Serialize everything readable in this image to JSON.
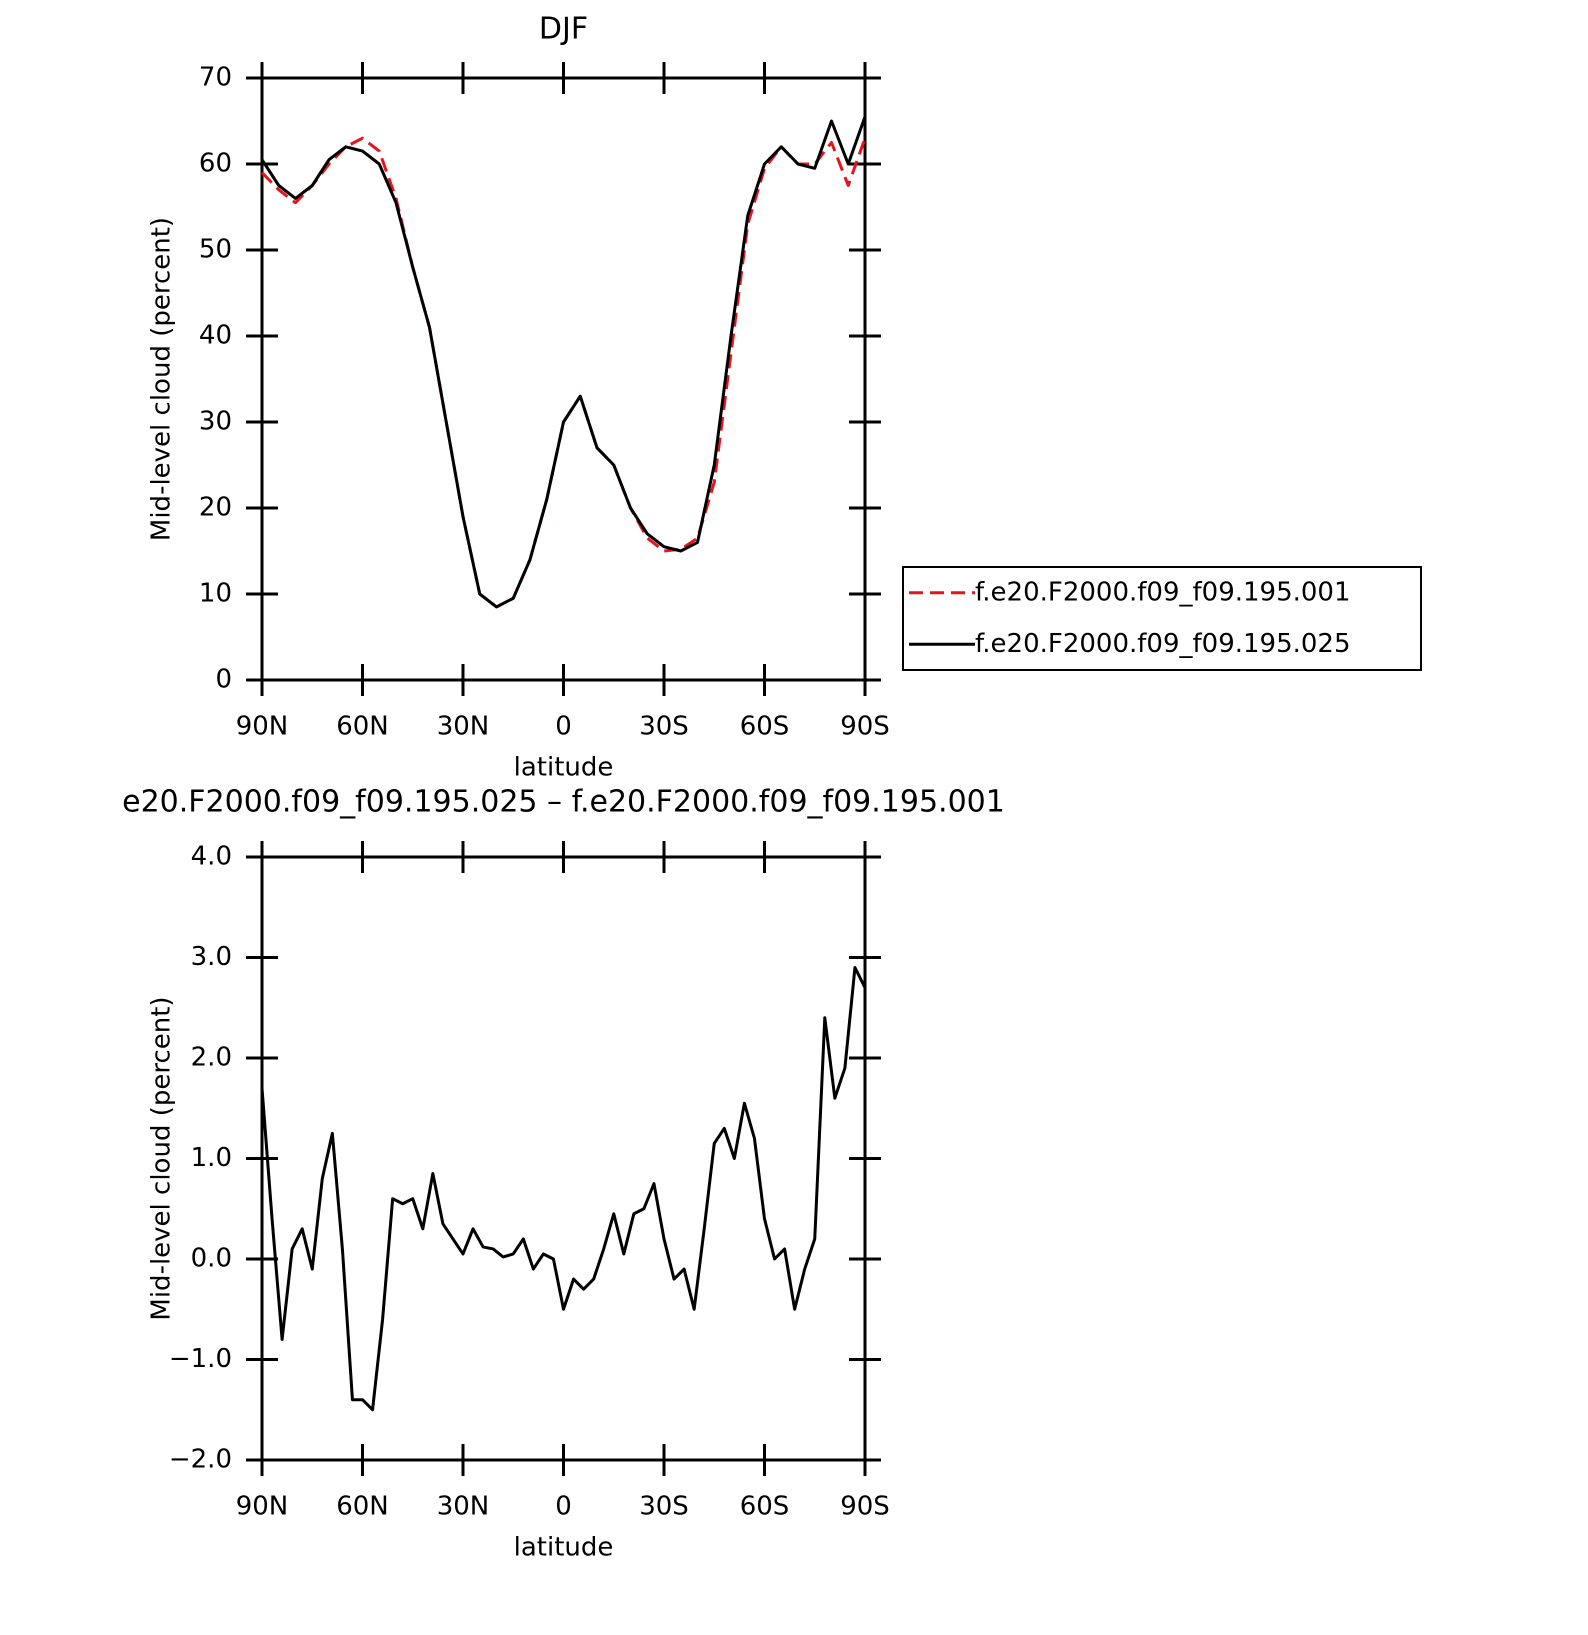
{
  "chart_data": [
    {
      "type": "line",
      "title": "DJF",
      "xlabel": "latitude",
      "ylabel": "Mid-level cloud (percent)",
      "x": [
        90,
        85,
        80,
        75,
        70,
        65,
        60,
        55,
        50,
        45,
        40,
        35,
        30,
        25,
        20,
        15,
        10,
        5,
        0,
        -5,
        -10,
        -15,
        -20,
        -25,
        -30,
        -35,
        -40,
        -45,
        -50,
        -55,
        -60,
        -65,
        -70,
        -75,
        -80,
        -85,
        -90
      ],
      "series": [
        {
          "name": "f.e20.F2000.f09_f09.195.001",
          "color": "#e8141b",
          "line_style": "dashed",
          "values": [
            59,
            57,
            55.5,
            57.5,
            60,
            62,
            63,
            61.5,
            56,
            48,
            41,
            30,
            19,
            10,
            8.5,
            9.5,
            14,
            21,
            30,
            33,
            27,
            25,
            20,
            16.5,
            15,
            15.2,
            16.5,
            23,
            38,
            53,
            59.5,
            62,
            60,
            60,
            62.5,
            57.5,
            63
          ]
        },
        {
          "name": "f.e20.F2000.f09_f09.195.025",
          "color": "#000000",
          "line_style": "solid",
          "values": [
            60.5,
            57.5,
            56,
            57.5,
            60.5,
            62,
            61.5,
            60,
            55.5,
            48,
            41,
            30,
            19,
            10,
            8.5,
            9.5,
            14,
            21,
            30,
            33,
            27,
            25,
            20,
            17,
            15.5,
            15,
            16,
            25,
            40,
            54,
            60,
            62,
            60,
            59.5,
            65,
            60,
            65.5
          ]
        }
      ],
      "xlim": [
        90,
        -90
      ],
      "xticks": [
        {
          "value": 90,
          "label": "90N"
        },
        {
          "value": 60,
          "label": "60N"
        },
        {
          "value": 30,
          "label": "30N"
        },
        0,
        {
          "value": -30,
          "label": "30S"
        },
        {
          "value": -60,
          "label": "60S"
        },
        {
          "value": -90,
          "label": "90S"
        }
      ],
      "ylim": [
        0,
        70
      ],
      "yticks": [
        0,
        10,
        20,
        30,
        40,
        50,
        60,
        70
      ],
      "legend": "right"
    },
    {
      "type": "line",
      "title": "e20.F2000.f09_f09.195.025 – f.e20.F2000.f09_f09.195.001",
      "xlabel": "latitude",
      "ylabel": "Mid-level cloud (percent)",
      "x": [
        90,
        87,
        84,
        81,
        78,
        75,
        72,
        69,
        66,
        63,
        60,
        57,
        54,
        51,
        48,
        45,
        42,
        39,
        36,
        33,
        30,
        27,
        24,
        21,
        18,
        15,
        12,
        9,
        6,
        3,
        0,
        -3,
        -6,
        -9,
        -12,
        -15,
        -18,
        -21,
        -24,
        -27,
        -30,
        -33,
        -36,
        -39,
        -42,
        -45,
        -48,
        -51,
        -54,
        -57,
        -60,
        -63,
        -66,
        -69,
        -72,
        -75,
        -78,
        -81,
        -84,
        -87,
        -90
      ],
      "series": [
        {
          "name": null,
          "color": "#000000",
          "line_style": "solid",
          "values": [
            1.7,
            0.4,
            -0.8,
            0.1,
            0.3,
            -0.1,
            0.8,
            1.25,
            0.1,
            -1.4,
            -1.4,
            -1.5,
            -0.6,
            0.6,
            0.55,
            0.6,
            0.3,
            0.85,
            0.35,
            0.2,
            0.05,
            0.3,
            0.12,
            0.1,
            0.02,
            0.05,
            0.2,
            -0.1,
            0.05,
            0,
            -0.5,
            -0.2,
            -0.3,
            -0.2,
            0.1,
            0.45,
            0.05,
            0.45,
            0.5,
            0.75,
            0.2,
            -0.2,
            -0.1,
            -0.5,
            0.3,
            1.15,
            1.3,
            1,
            1.55,
            1.2,
            0.4,
            0,
            0.1,
            -0.5,
            -0.1,
            0.2,
            2.4,
            1.6,
            1.9,
            2.9,
            2.7
          ]
        }
      ],
      "xlim": [
        90,
        -90
      ],
      "xticks": [
        {
          "value": 90,
          "label": "90N"
        },
        {
          "value": 60,
          "label": "60N"
        },
        {
          "value": 30,
          "label": "30N"
        },
        0,
        {
          "value": -30,
          "label": "30S"
        },
        {
          "value": -60,
          "label": "60S"
        },
        {
          "value": -90,
          "label": "90S"
        }
      ],
      "ylim": [
        -2,
        4
      ],
      "yticks": [
        {
          "value": -2,
          "label": "−2.0"
        },
        {
          "value": -1,
          "label": "−1.0"
        },
        {
          "value": 0,
          "label": "0.0"
        },
        {
          "value": 1,
          "label": "1.0"
        },
        {
          "value": 2,
          "label": "2.0"
        },
        {
          "value": 3,
          "label": "3.0"
        },
        {
          "value": 4,
          "label": "4.0"
        }
      ]
    }
  ]
}
